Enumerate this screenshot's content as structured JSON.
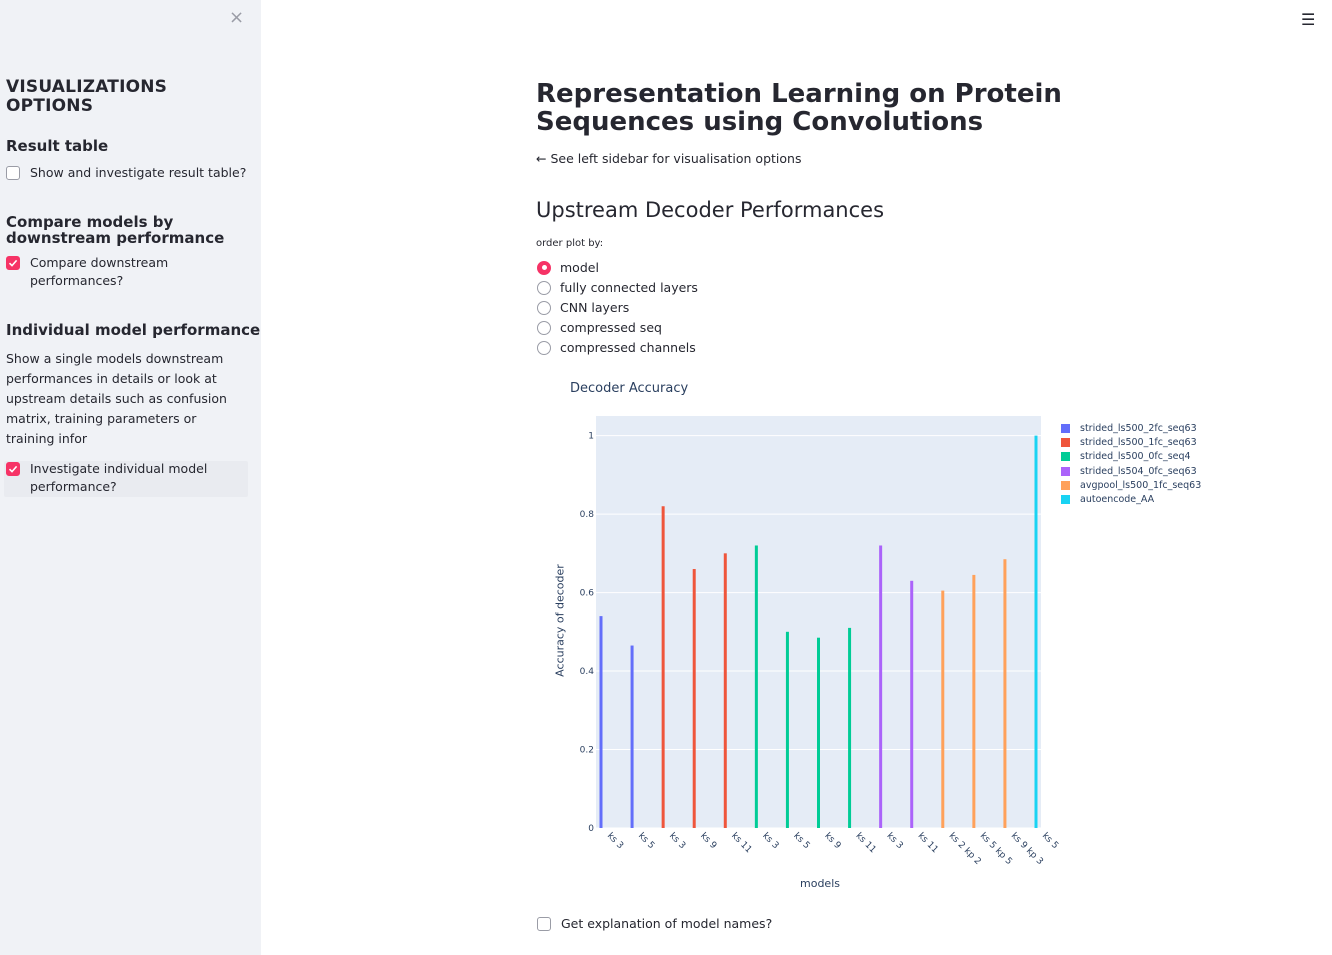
{
  "sidebar": {
    "close_icon": "×",
    "title": "VISUALIZATIONS OPTIONS",
    "result_table": {
      "heading": "Result table",
      "checkbox_label": "Show and investigate result table?",
      "checked": false
    },
    "compare": {
      "heading": "Compare models by downstream performance",
      "checkbox_label": "Compare downstream performances?",
      "checked": true
    },
    "individual": {
      "heading": "Individual model performance",
      "description": "Show a single models downstream performances in details or look at upstream details such as confusion matrix, training parameters or training infor",
      "checkbox_label": "Investigate individual model performance?",
      "checked": true
    }
  },
  "header": {
    "menu_icon": "☰"
  },
  "main": {
    "title": "Representation Learning on Protein Sequences using Convolutions",
    "hint": "← See left sidebar for visualisation options",
    "subheader": "Upstream Decoder Performances",
    "order_caption": "order plot by:",
    "order_options": [
      "model",
      "fully connected layers",
      "CNN layers",
      "compressed seq",
      "compressed channels"
    ],
    "order_selected": 0,
    "explain_checkbox_label": "Get explanation of model names?",
    "explain_checked": false
  },
  "colors": {
    "accent": "#f63366",
    "plot_bg": "#e5ecf6"
  },
  "chart_data": {
    "type": "bar",
    "title": "Decoder Accuracy",
    "xlabel": "models",
    "ylabel": "Accuracy of decoder",
    "ylim": [
      0,
      1.05
    ],
    "yticks": [
      0,
      0.2,
      0.4,
      0.6,
      0.8,
      1
    ],
    "ytick_labels": [
      "0",
      "0.2",
      "0.4",
      "0.6",
      "0.8",
      "1"
    ],
    "grid": true,
    "legend_position": "right",
    "categories": [
      "ks 3",
      "ks 5",
      "ks 3",
      "ks 9",
      "ks 11",
      "ks 3",
      "ks 5",
      "ks 9",
      "ks 11",
      "ks 3",
      "ks 11",
      "ks 2 kp 2",
      "ks 5 kp 5",
      "ks 9 kp 3",
      "ks 5"
    ],
    "series": [
      {
        "name": "strided_ls500_2fc_seq63",
        "color": "#636efa",
        "points": [
          {
            "i": 0,
            "v": 0.54
          },
          {
            "i": 1,
            "v": 0.465
          }
        ]
      },
      {
        "name": "strided_ls500_1fc_seq63",
        "color": "#ef553b",
        "points": [
          {
            "i": 2,
            "v": 0.82
          },
          {
            "i": 3,
            "v": 0.66
          },
          {
            "i": 4,
            "v": 0.7
          }
        ]
      },
      {
        "name": "strided_ls500_0fc_seq4",
        "color": "#00cc96",
        "points": [
          {
            "i": 5,
            "v": 0.72
          },
          {
            "i": 6,
            "v": 0.5
          },
          {
            "i": 7,
            "v": 0.485
          },
          {
            "i": 8,
            "v": 0.51
          }
        ]
      },
      {
        "name": "strided_ls504_0fc_seq63",
        "color": "#ab63fa",
        "points": [
          {
            "i": 9,
            "v": 0.72
          },
          {
            "i": 10,
            "v": 0.63
          }
        ]
      },
      {
        "name": "avgpool_ls500_1fc_seq63",
        "color": "#ffa15a",
        "points": [
          {
            "i": 11,
            "v": 0.605
          },
          {
            "i": 12,
            "v": 0.645
          },
          {
            "i": 13,
            "v": 0.685
          }
        ]
      },
      {
        "name": "autoencode_AA",
        "color": "#19d3f3",
        "points": [
          {
            "i": 14,
            "v": 1.0
          }
        ]
      }
    ]
  }
}
